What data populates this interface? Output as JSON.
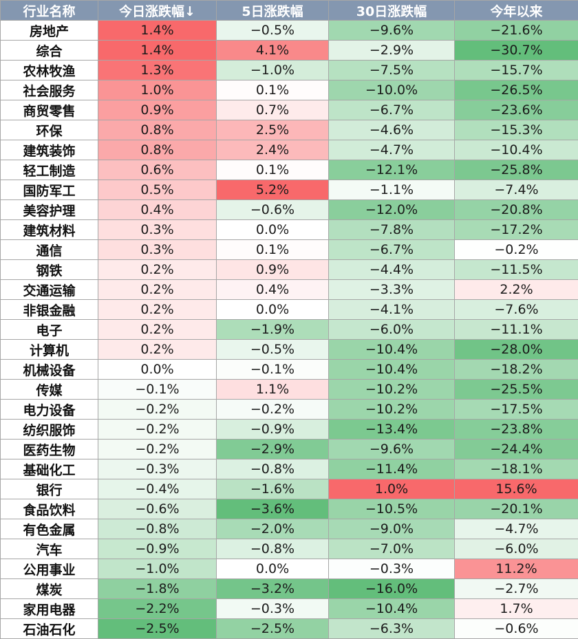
{
  "chart_data": {
    "type": "table",
    "columns": [
      "行业名称",
      "今日涨跌幅↓",
      "5日涨跌幅",
      "30日涨跌幅",
      "今年以来"
    ],
    "rows": [
      {
        "name": "房地产",
        "values": [
          "1.4%",
          "−0.5%",
          "−9.6%",
          "−21.6%"
        ]
      },
      {
        "name": "综合",
        "values": [
          "1.4%",
          "4.1%",
          "−2.9%",
          "−30.7%"
        ]
      },
      {
        "name": "农林牧渔",
        "values": [
          "1.3%",
          "−1.0%",
          "−7.5%",
          "−15.7%"
        ]
      },
      {
        "name": "社会服务",
        "values": [
          "1.0%",
          "0.1%",
          "−10.0%",
          "−26.5%"
        ]
      },
      {
        "name": "商贸零售",
        "values": [
          "0.9%",
          "0.7%",
          "−6.7%",
          "−23.6%"
        ]
      },
      {
        "name": "环保",
        "values": [
          "0.8%",
          "2.5%",
          "−4.6%",
          "−15.3%"
        ]
      },
      {
        "name": "建筑装饰",
        "values": [
          "0.8%",
          "2.4%",
          "−4.7%",
          "−10.4%"
        ]
      },
      {
        "name": "轻工制造",
        "values": [
          "0.6%",
          "0.1%",
          "−12.1%",
          "−25.8%"
        ]
      },
      {
        "name": "国防军工",
        "values": [
          "0.5%",
          "5.2%",
          "−1.1%",
          "−7.4%"
        ]
      },
      {
        "name": "美容护理",
        "values": [
          "0.4%",
          "−0.6%",
          "−12.0%",
          "−20.8%"
        ]
      },
      {
        "name": "建筑材料",
        "values": [
          "0.3%",
          "0.0%",
          "−7.8%",
          "−17.2%"
        ]
      },
      {
        "name": "通信",
        "values": [
          "0.3%",
          "0.1%",
          "−6.7%",
          "−0.2%"
        ]
      },
      {
        "name": "钢铁",
        "values": [
          "0.2%",
          "0.9%",
          "−4.4%",
          "−11.5%"
        ]
      },
      {
        "name": "交通运输",
        "values": [
          "0.2%",
          "0.4%",
          "−3.3%",
          "2.2%"
        ]
      },
      {
        "name": "非银金融",
        "values": [
          "0.2%",
          "0.0%",
          "−4.1%",
          "−7.6%"
        ]
      },
      {
        "name": "电子",
        "values": [
          "0.2%",
          "−1.9%",
          "−6.0%",
          "−11.1%"
        ]
      },
      {
        "name": "计算机",
        "values": [
          "0.2%",
          "−0.5%",
          "−10.4%",
          "−28.0%"
        ]
      },
      {
        "name": "机械设备",
        "values": [
          "0.0%",
          "−0.1%",
          "−10.4%",
          "−18.2%"
        ]
      },
      {
        "name": "传媒",
        "values": [
          "−0.1%",
          "1.1%",
          "−10.2%",
          "−25.5%"
        ]
      },
      {
        "name": "电力设备",
        "values": [
          "−0.2%",
          "−0.2%",
          "−10.2%",
          "−17.5%"
        ]
      },
      {
        "name": "纺织服饰",
        "values": [
          "−0.2%",
          "−0.9%",
          "−13.4%",
          "−23.8%"
        ]
      },
      {
        "name": "医药生物",
        "values": [
          "−0.2%",
          "−2.9%",
          "−9.6%",
          "−24.4%"
        ]
      },
      {
        "name": "基础化工",
        "values": [
          "−0.3%",
          "−0.8%",
          "−11.4%",
          "−18.1%"
        ]
      },
      {
        "name": "银行",
        "values": [
          "−0.4%",
          "−1.6%",
          "1.0%",
          "15.6%"
        ]
      },
      {
        "name": "食品饮料",
        "values": [
          "−0.6%",
          "−3.6%",
          "−10.5%",
          "−20.1%"
        ]
      },
      {
        "name": "有色金属",
        "values": [
          "−0.8%",
          "−2.0%",
          "−9.0%",
          "−4.7%"
        ]
      },
      {
        "name": "汽车",
        "values": [
          "−0.9%",
          "−0.8%",
          "−7.0%",
          "−6.0%"
        ]
      },
      {
        "name": "公用事业",
        "values": [
          "−1.0%",
          "0.0%",
          "−0.3%",
          "11.2%"
        ]
      },
      {
        "name": "煤炭",
        "values": [
          "−1.8%",
          "−3.2%",
          "−16.0%",
          "−2.7%"
        ]
      },
      {
        "name": "家用电器",
        "values": [
          "−2.2%",
          "−0.3%",
          "−10.4%",
          "1.7%"
        ]
      },
      {
        "name": "石油石化",
        "values": [
          "−2.5%",
          "−2.5%",
          "−6.3%",
          "−0.6%"
        ]
      }
    ],
    "colors": {
      "header_bg": "#8497b0",
      "positive": "#f8696b",
      "negative": "#63be7b",
      "neutral": "#ffffff"
    }
  }
}
